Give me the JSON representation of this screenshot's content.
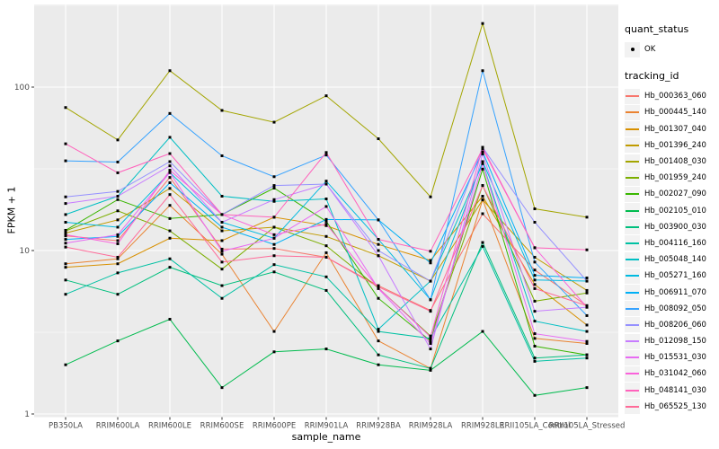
{
  "figure": {
    "background": "#FFFFFF",
    "panel_background": "#EBEBEB",
    "grid_color": "#FFFFFF",
    "tick_color": "#333333",
    "tick_label_color": "#4D4D4D",
    "point_color": "#000000",
    "legend_key_background": "#F2F2F2"
  },
  "chart_data": {
    "type": "line",
    "title": "",
    "xlabel": "sample_name",
    "ylabel": "FPKM + 1",
    "y_scale": "log10",
    "y_ticks": [
      1,
      10,
      100
    ],
    "y_tick_labels": [
      "1",
      "10",
      "100"
    ],
    "y_minor_ticks": [
      3.162,
      31.62,
      316.2
    ],
    "ylim": [
      0.95,
      320
    ],
    "grid": true,
    "legend_position": "right",
    "categories": [
      "PB350LA",
      "RRIM600LA",
      "RRIM600LE",
      "RRIM600SE",
      "RRIM600PE",
      "RRIM901LA",
      "RRIM928BA",
      "RRIM928LA",
      "RRIM928LE",
      "RRII105LA_Control",
      "RRII105LA_Stressed"
    ],
    "series": [
      {
        "name": "Hb_000363_060",
        "color": "#F8766D",
        "values": [
          12.3,
          11.5,
          28,
          10.2,
          10.3,
          9.1,
          6.1,
          4.3,
          16.8,
          7.6,
          4.6
        ]
      },
      {
        "name": "Hb_000445_140",
        "color": "#EA8331",
        "values": [
          8.3,
          8.9,
          18.9,
          9.5,
          3.2,
          9.7,
          2.8,
          1.9,
          20.5,
          2.9,
          2.7
        ]
      },
      {
        "name": "Hb_001307_040",
        "color": "#D89000",
        "values": [
          7.9,
          8.3,
          11.9,
          11.5,
          16,
          14.2,
          10.9,
          8.7,
          21.5,
          6.2,
          3.5
        ]
      },
      {
        "name": "Hb_001396_240",
        "color": "#C09B00",
        "values": [
          12.8,
          15.4,
          24,
          13.2,
          13.9,
          12.2,
          9.3,
          6.5,
          20.4,
          9.1,
          5.7
        ]
      },
      {
        "name": "Hb_001408_030",
        "color": "#A3A500",
        "values": [
          75,
          47.5,
          126,
          72,
          61,
          88.5,
          48.3,
          21.3,
          245,
          18,
          16
        ]
      },
      {
        "name": "Hb_001959_240",
        "color": "#7CAE00",
        "values": [
          13.2,
          17.5,
          13.2,
          7.7,
          13.9,
          10.7,
          5.9,
          3.0,
          25,
          4.9,
          5.5
        ]
      },
      {
        "name": "Hb_002027_090",
        "color": "#39B600",
        "values": [
          13.3,
          20.5,
          15.7,
          16.6,
          24.1,
          15.1,
          5.1,
          2.8,
          31.5,
          2.6,
          2.3
        ]
      },
      {
        "name": "Hb_002105_010",
        "color": "#00BB4E",
        "values": [
          2.0,
          2.8,
          3.8,
          1.45,
          2.4,
          2.5,
          2.0,
          1.85,
          3.2,
          1.3,
          1.45
        ]
      },
      {
        "name": "Hb_003900_030",
        "color": "#00BF7D",
        "values": [
          6.6,
          5.4,
          7.9,
          6.1,
          7.4,
          5.7,
          2.3,
          1.9,
          11.2,
          2.2,
          2.3
        ]
      },
      {
        "name": "Hb_004116_160",
        "color": "#00C1A3",
        "values": [
          5.4,
          7.3,
          8.9,
          5.1,
          8.2,
          6.9,
          3.2,
          2.9,
          10.6,
          2.1,
          2.2
        ]
      },
      {
        "name": "Hb_005048_140",
        "color": "#00BFC4",
        "values": [
          16.6,
          21.5,
          49.3,
          21.5,
          20,
          20.7,
          3.3,
          6.5,
          34.2,
          3.7,
          3.2
        ]
      },
      {
        "name": "Hb_005271_160",
        "color": "#00BAE0",
        "values": [
          14.9,
          13.9,
          30,
          14.9,
          11.9,
          26.6,
          11.7,
          5.0,
          35,
          6.6,
          6.5
        ]
      },
      {
        "name": "Hb_006911_070",
        "color": "#00B0F6",
        "values": [
          11.7,
          12.2,
          26,
          13.9,
          10.9,
          15.5,
          15.4,
          8.4,
          40.2,
          7.05,
          6.8
        ]
      },
      {
        "name": "Hb_008092_050",
        "color": "#35A2FF",
        "values": [
          35.4,
          34.8,
          69,
          38,
          28.3,
          38.4,
          15.4,
          5.0,
          126,
          8.5,
          4.0
        ]
      },
      {
        "name": "Hb_008206_060",
        "color": "#9590FF",
        "values": [
          21.3,
          23,
          35,
          16.6,
          25,
          25.5,
          10,
          6.5,
          42.8,
          14.9,
          6.5
        ]
      },
      {
        "name": "Hb_012098_150",
        "color": "#C77CFF",
        "values": [
          19.4,
          21.5,
          33,
          14.9,
          20.5,
          25.5,
          9.3,
          2.5,
          39,
          4.25,
          4.5
        ]
      },
      {
        "name": "Hb_015531_030",
        "color": "#E76BF3",
        "values": [
          11.1,
          12.5,
          30,
          9.9,
          11.9,
          18.6,
          5.85,
          2.7,
          34,
          3.1,
          2.78
        ]
      },
      {
        "name": "Hb_031042_060",
        "color": "#FA62DB",
        "values": [
          12.5,
          11,
          31,
          16.6,
          12.5,
          14.5,
          5.9,
          2.96,
          42.8,
          10.4,
          4.5
        ]
      },
      {
        "name": "Hb_048141_030",
        "color": "#FF62BC",
        "values": [
          45,
          29.9,
          39.2,
          16.6,
          16,
          39.8,
          11.7,
          9.9,
          42,
          10.4,
          10.1
        ]
      },
      {
        "name": "Hb_065525_130",
        "color": "#FF6A98",
        "values": [
          10.5,
          9.1,
          22,
          8.5,
          9.3,
          9.1,
          6.0,
          4.25,
          25,
          5.85,
          4.6
        ]
      }
    ],
    "legend": {
      "quant_status": {
        "title": "quant_status",
        "items": [
          {
            "label": "OK",
            "shape": "point",
            "color": "#000000"
          }
        ]
      },
      "tracking_id": {
        "title": "tracking_id"
      }
    }
  }
}
